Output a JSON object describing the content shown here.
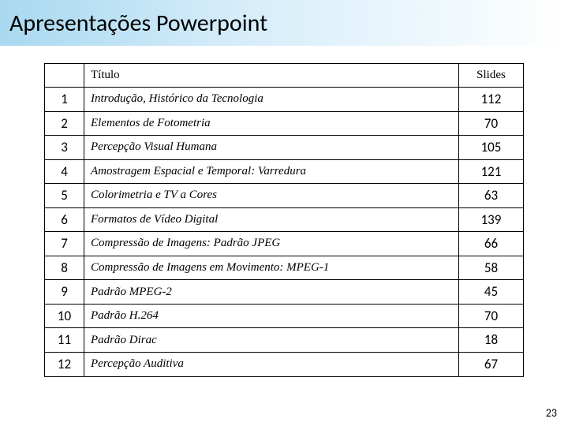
{
  "page": {
    "title": "Apresentações Powerpoint",
    "number": "23"
  },
  "table": {
    "headers": {
      "num": "",
      "title": "Título",
      "slides": "Slides"
    },
    "rows": [
      {
        "num": "1",
        "title": "Introdução, Histórico da Tecnologia",
        "slides": "112"
      },
      {
        "num": "2",
        "title": "Elementos de Fotometria",
        "slides": "70"
      },
      {
        "num": "3",
        "title": "Percepção Visual Humana",
        "slides": "105"
      },
      {
        "num": "4",
        "title": " Amostragem Espacial e Temporal: Varredura",
        "slides": "121"
      },
      {
        "num": "5",
        "title": "Colorimetria e TV a Cores",
        "slides": "63"
      },
      {
        "num": "6",
        "title": "Formatos de Vídeo Digital",
        "slides": "139"
      },
      {
        "num": "7",
        "title": " Compressão de Imagens: Padrão JPEG",
        "slides": "66"
      },
      {
        "num": "8",
        "title": "Compressão de Imagens em Movimento: MPEG-1",
        "slides": "58"
      },
      {
        "num": "9",
        "title": "Padrão MPEG-2",
        "slides": "45"
      },
      {
        "num": "10",
        "title": "Padrão H.264",
        "slides": "70"
      },
      {
        "num": "11",
        "title": "Padrão Dirac",
        "slides": "18"
      },
      {
        "num": "12",
        "title": "Percepção Auditiva",
        "slides": "67"
      }
    ]
  },
  "style": {
    "header_gradient_start": "#a8d8f0",
    "header_gradient_mid": "#d4ecf9",
    "header_gradient_end": "#ffffff",
    "border_color": "#000000",
    "title_fontsize": 30,
    "cell_fontsize": 15,
    "num_slides_fontsize": 17,
    "title_font": "Calibri",
    "body_font": "Georgia"
  }
}
